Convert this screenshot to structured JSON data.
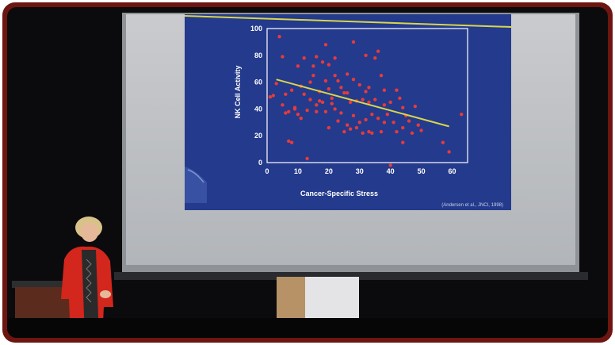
{
  "scene": "photo",
  "slide": {
    "citation": "(Andersen et al., JNCI, 1998)",
    "colors": {
      "background": "#243a8c",
      "points": "#e63b3b",
      "trend_line": "#d9d64a",
      "axis_text": "#ffffff"
    }
  },
  "chart_data": {
    "type": "scatter",
    "title": "",
    "xlabel": "Cancer-Specific Stress",
    "ylabel": "NK Cell Activity",
    "xlim": [
      0,
      65
    ],
    "ylim": [
      0,
      100
    ],
    "xticks": [
      "0",
      "10",
      "20",
      "30",
      "40",
      "50",
      "60"
    ],
    "yticks": [
      "0",
      "20",
      "40",
      "60",
      "80",
      "100"
    ],
    "grid": false,
    "points": [
      [
        1,
        49
      ],
      [
        2,
        50
      ],
      [
        3,
        59
      ],
      [
        4,
        94
      ],
      [
        5,
        79
      ],
      [
        5,
        43
      ],
      [
        6,
        51
      ],
      [
        6,
        37
      ],
      [
        7,
        38
      ],
      [
        7,
        16
      ],
      [
        8,
        15
      ],
      [
        8,
        54
      ],
      [
        9,
        41
      ],
      [
        9,
        40
      ],
      [
        10,
        72
      ],
      [
        10,
        36
      ],
      [
        11,
        33
      ],
      [
        11,
        57
      ],
      [
        12,
        78
      ],
      [
        12,
        51
      ],
      [
        13,
        3
      ],
      [
        13,
        39
      ],
      [
        14,
        47
      ],
      [
        14,
        60
      ],
      [
        15,
        65
      ],
      [
        15,
        72
      ],
      [
        16,
        79
      ],
      [
        16,
        43
      ],
      [
        16,
        38
      ],
      [
        17,
        53
      ],
      [
        17,
        46
      ],
      [
        18,
        45
      ],
      [
        18,
        75
      ],
      [
        19,
        88
      ],
      [
        19,
        61
      ],
      [
        19,
        38
      ],
      [
        20,
        73
      ],
      [
        20,
        55
      ],
      [
        20,
        26
      ],
      [
        21,
        48
      ],
      [
        21,
        44
      ],
      [
        22,
        78
      ],
      [
        22,
        65
      ],
      [
        22,
        40
      ],
      [
        23,
        61
      ],
      [
        23,
        31
      ],
      [
        24,
        56
      ],
      [
        24,
        37
      ],
      [
        25,
        52
      ],
      [
        25,
        23
      ],
      [
        26,
        66
      ],
      [
        26,
        52
      ],
      [
        26,
        28
      ],
      [
        27,
        45
      ],
      [
        27,
        25
      ],
      [
        28,
        90
      ],
      [
        28,
        62
      ],
      [
        28,
        35
      ],
      [
        29,
        46
      ],
      [
        29,
        26
      ],
      [
        30,
        58
      ],
      [
        30,
        30
      ],
      [
        31,
        47
      ],
      [
        31,
        22
      ],
      [
        32,
        80
      ],
      [
        32,
        53
      ],
      [
        32,
        32
      ],
      [
        33,
        56
      ],
      [
        33,
        45
      ],
      [
        33,
        23
      ],
      [
        34,
        36
      ],
      [
        34,
        22
      ],
      [
        35,
        78
      ],
      [
        35,
        47
      ],
      [
        36,
        83
      ],
      [
        36,
        33
      ],
      [
        37,
        65
      ],
      [
        37,
        23
      ],
      [
        38,
        54
      ],
      [
        38,
        43
      ],
      [
        38,
        30
      ],
      [
        39,
        36
      ],
      [
        40,
        45
      ],
      [
        40,
        -2
      ],
      [
        41,
        30
      ],
      [
        42,
        54
      ],
      [
        42,
        23
      ],
      [
        43,
        48
      ],
      [
        44,
        41
      ],
      [
        44,
        26
      ],
      [
        44,
        15
      ],
      [
        45,
        35
      ],
      [
        46,
        31
      ],
      [
        47,
        22
      ],
      [
        48,
        42
      ],
      [
        49,
        28
      ],
      [
        50,
        24
      ],
      [
        57,
        15
      ],
      [
        59,
        8
      ],
      [
        63,
        36
      ]
    ],
    "trend_line": {
      "from": [
        3,
        62
      ],
      "to": [
        59,
        27
      ]
    }
  }
}
